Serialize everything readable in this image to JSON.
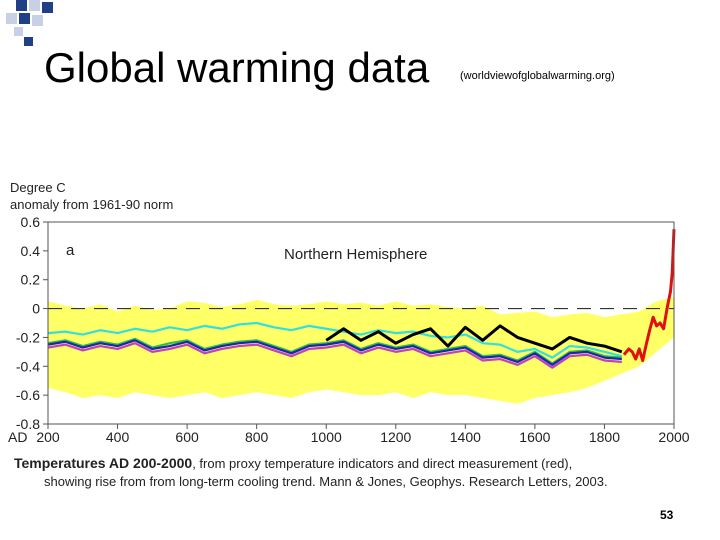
{
  "slide": {
    "title": "Global warming data",
    "source": "(worldviewofglobalwarming.org)",
    "page_number": "53"
  },
  "colors": {
    "square_blue": "#1f3f86",
    "square_light": "#c8d0e6",
    "band": "#ffff66",
    "instrumental": "#e01010",
    "series_black": "#000000",
    "series_cyan": "#30e0e0",
    "series_green": "#30c040",
    "series_blue": "#2020c0",
    "series_magenta": "#c040c0"
  },
  "chart_data": {
    "type": "line",
    "ylabel_line1": "Degree C",
    "ylabel_line2": "anomaly from 1961-90 norm",
    "panel_letter": "a",
    "panel_title": "Northern Hemisphere",
    "x_axis_prefix": "AD",
    "xlim": [
      200,
      2000
    ],
    "ylim": [
      -0.8,
      0.6
    ],
    "xticks": [
      "200",
      "400",
      "600",
      "800",
      "1000",
      "1200",
      "1400",
      "1600",
      "1800",
      "2000"
    ],
    "yticks": [
      "0.6",
      "0.4",
      "0.2",
      "0",
      "-0.2",
      "-0.4",
      "-0.6",
      "-0.8"
    ],
    "caption_bold": "Temperatures AD 200-2000",
    "caption_rest": ", from proxy temperature indicators and direct measurement (red),",
    "caption_line2": "showing rise from from long-term cooling trend.  Mann & Jones, Geophys. Research Letters, 2003.",
    "uncertainty_band": {
      "x": [
        200,
        250,
        300,
        350,
        400,
        450,
        500,
        550,
        600,
        650,
        700,
        750,
        800,
        850,
        900,
        950,
        1000,
        1050,
        1100,
        1150,
        1200,
        1250,
        1300,
        1350,
        1400,
        1450,
        1500,
        1550,
        1600,
        1650,
        1700,
        1750,
        1800,
        1850,
        1900,
        1950,
        2000
      ],
      "upper": [
        0.05,
        0.02,
        0.0,
        0.03,
        -0.02,
        0.02,
        -0.01,
        0.0,
        0.05,
        0.04,
        0.01,
        0.03,
        0.06,
        0.03,
        0.02,
        0.03,
        0.05,
        0.03,
        0.04,
        0.02,
        0.05,
        0.02,
        0.03,
        0.01,
        0.0,
        0.02,
        -0.04,
        -0.03,
        -0.02,
        -0.06,
        -0.04,
        -0.03,
        -0.06,
        -0.04,
        -0.02,
        0.05,
        0.08
      ],
      "lower": [
        -0.55,
        -0.58,
        -0.62,
        -0.6,
        -0.62,
        -0.58,
        -0.6,
        -0.62,
        -0.6,
        -0.58,
        -0.62,
        -0.6,
        -0.58,
        -0.6,
        -0.62,
        -0.58,
        -0.56,
        -0.58,
        -0.6,
        -0.6,
        -0.58,
        -0.62,
        -0.58,
        -0.6,
        -0.6,
        -0.62,
        -0.64,
        -0.66,
        -0.62,
        -0.6,
        -0.58,
        -0.55,
        -0.5,
        -0.45,
        -0.4,
        -0.3,
        -0.2
      ]
    },
    "series": [
      {
        "color_key": "series_cyan",
        "x": [
          200,
          250,
          300,
          350,
          400,
          450,
          500,
          550,
          600,
          650,
          700,
          750,
          800,
          850,
          900,
          950,
          1000,
          1050,
          1100,
          1150,
          1200,
          1250,
          1300,
          1350,
          1400,
          1450,
          1500,
          1550,
          1600,
          1650,
          1700,
          1750,
          1800,
          1850
        ],
        "y": [
          -0.17,
          -0.16,
          -0.18,
          -0.15,
          -0.17,
          -0.14,
          -0.16,
          -0.13,
          -0.15,
          -0.12,
          -0.14,
          -0.11,
          -0.1,
          -0.13,
          -0.15,
          -0.12,
          -0.14,
          -0.16,
          -0.18,
          -0.15,
          -0.17,
          -0.16,
          -0.19,
          -0.2,
          -0.18,
          -0.24,
          -0.25,
          -0.3,
          -0.28,
          -0.34,
          -0.26,
          -0.27,
          -0.3,
          -0.33
        ]
      },
      {
        "color_key": "series_black",
        "x": [
          1000,
          1050,
          1100,
          1150,
          1200,
          1250,
          1300,
          1350,
          1400,
          1450,
          1500,
          1550,
          1600,
          1650,
          1700,
          1750,
          1800,
          1850
        ],
        "y": [
          -0.22,
          -0.14,
          -0.22,
          -0.16,
          -0.24,
          -0.18,
          -0.14,
          -0.26,
          -0.13,
          -0.22,
          -0.12,
          -0.2,
          -0.24,
          -0.28,
          -0.2,
          -0.24,
          -0.26,
          -0.3
        ]
      },
      {
        "color_key": "series_green",
        "x": [
          200,
          250,
          300,
          350,
          400,
          450,
          500,
          550,
          600,
          650,
          700,
          750,
          800,
          850,
          900,
          950,
          1000,
          1050,
          1100,
          1150,
          1200,
          1250,
          1300,
          1350,
          1400,
          1450,
          1500,
          1550,
          1600,
          1650,
          1700,
          1750,
          1800,
          1850
        ],
        "y": [
          -0.24,
          -0.22,
          -0.26,
          -0.23,
          -0.25,
          -0.21,
          -0.27,
          -0.24,
          -0.22,
          -0.28,
          -0.25,
          -0.23,
          -0.22,
          -0.26,
          -0.3,
          -0.25,
          -0.24,
          -0.22,
          -0.28,
          -0.24,
          -0.27,
          -0.25,
          -0.3,
          -0.28,
          -0.26,
          -0.33,
          -0.32,
          -0.36,
          -0.3,
          -0.38,
          -0.3,
          -0.29,
          -0.33,
          -0.34
        ]
      },
      {
        "color_key": "series_magenta",
        "x": [
          200,
          250,
          300,
          350,
          400,
          450,
          500,
          550,
          600,
          650,
          700,
          750,
          800,
          850,
          900,
          950,
          1000,
          1050,
          1100,
          1150,
          1200,
          1250,
          1300,
          1350,
          1400,
          1450,
          1500,
          1550,
          1600,
          1650,
          1700,
          1750,
          1800,
          1850
        ],
        "y": [
          -0.27,
          -0.25,
          -0.29,
          -0.26,
          -0.28,
          -0.24,
          -0.3,
          -0.28,
          -0.25,
          -0.31,
          -0.28,
          -0.26,
          -0.25,
          -0.29,
          -0.33,
          -0.28,
          -0.27,
          -0.25,
          -0.31,
          -0.27,
          -0.3,
          -0.28,
          -0.33,
          -0.31,
          -0.29,
          -0.36,
          -0.35,
          -0.39,
          -0.33,
          -0.41,
          -0.33,
          -0.32,
          -0.36,
          -0.37
        ]
      },
      {
        "color_key": "series_blue",
        "x": [
          200,
          250,
          300,
          350,
          400,
          450,
          500,
          550,
          600,
          650,
          700,
          750,
          800,
          850,
          900,
          950,
          1000,
          1050,
          1100,
          1150,
          1200,
          1250,
          1300,
          1350,
          1400,
          1450,
          1500,
          1550,
          1600,
          1650,
          1700,
          1750,
          1800,
          1850
        ],
        "y": [
          -0.25,
          -0.23,
          -0.27,
          -0.24,
          -0.26,
          -0.22,
          -0.28,
          -0.26,
          -0.23,
          -0.29,
          -0.26,
          -0.24,
          -0.23,
          -0.27,
          -0.31,
          -0.26,
          -0.25,
          -0.23,
          -0.29,
          -0.25,
          -0.28,
          -0.26,
          -0.31,
          -0.29,
          -0.27,
          -0.34,
          -0.33,
          -0.37,
          -0.31,
          -0.39,
          -0.31,
          -0.3,
          -0.34,
          -0.35
        ]
      },
      {
        "color_key": "instrumental",
        "x": [
          1856,
          1870,
          1880,
          1890,
          1900,
          1910,
          1920,
          1930,
          1940,
          1950,
          1960,
          1970,
          1980,
          1990,
          1995,
          2000
        ],
        "y": [
          -0.32,
          -0.28,
          -0.3,
          -0.35,
          -0.28,
          -0.36,
          -0.25,
          -0.15,
          -0.06,
          -0.12,
          -0.1,
          -0.14,
          0.0,
          0.12,
          0.25,
          0.55
        ]
      }
    ]
  }
}
